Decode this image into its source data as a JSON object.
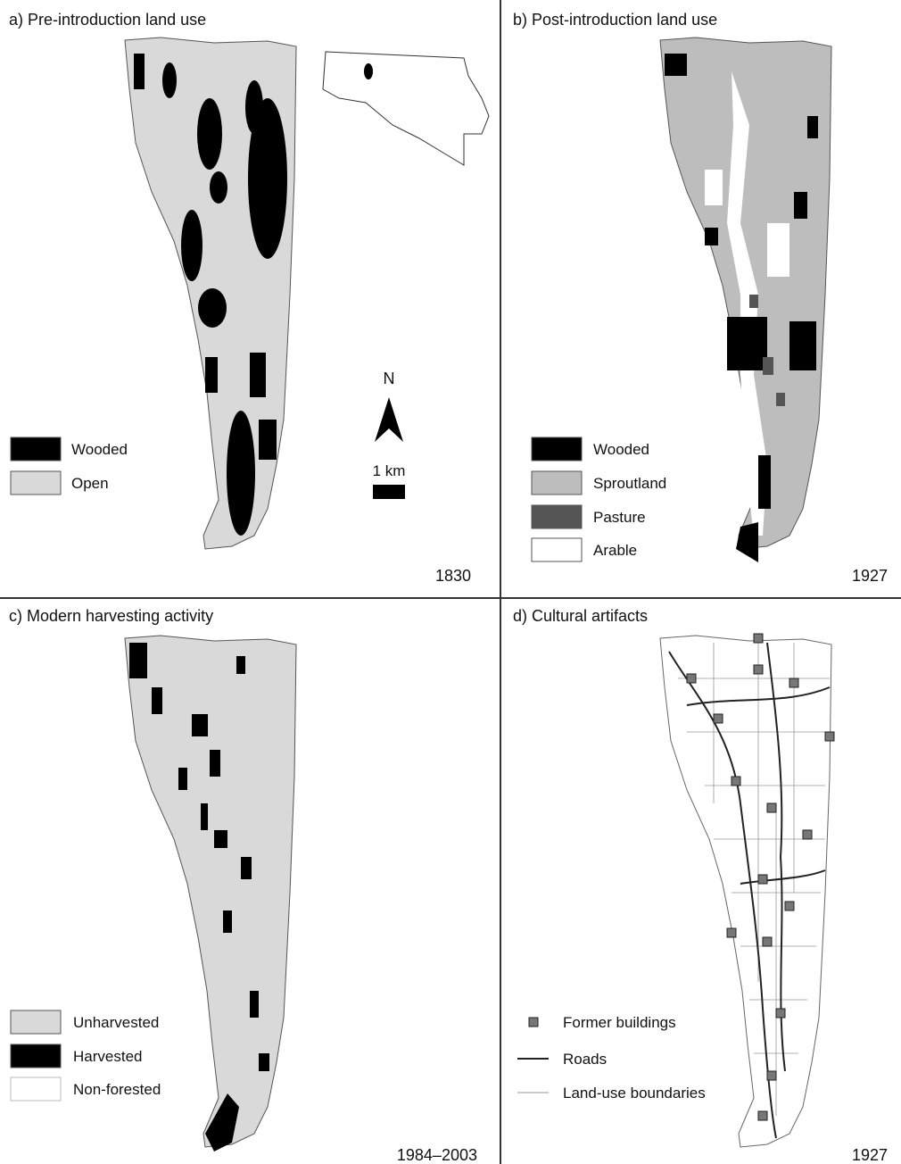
{
  "panels": [
    {
      "title": "a) Pre-introduction land use",
      "legend": [
        "Wooded",
        "Open"
      ],
      "year": "1830"
    },
    {
      "title": "b) Post-introduction land use",
      "legend": [
        "Wooded",
        "Sproutland",
        "Pasture",
        "Arable"
      ],
      "year": "1927"
    },
    {
      "title": "c) Modern harvesting activity",
      "legend": [
        "Unharvested",
        "Harvested",
        "Non-forested"
      ],
      "year": "1984–2003"
    },
    {
      "title": "d) Cultural artifacts",
      "legend": [
        "Former buildings",
        "Roads",
        "Land-use boundaries"
      ],
      "year": "1927"
    }
  ],
  "north_label": "N",
  "scale_label": "1 km"
}
